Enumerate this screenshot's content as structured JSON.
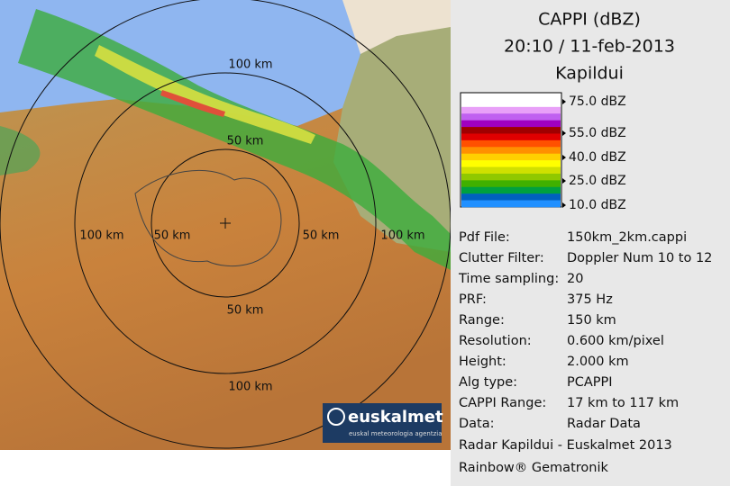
{
  "header": {
    "title": "CAPPI (dBZ)",
    "datetime": "20:10 / 11-feb-2013",
    "site": "Kapildui"
  },
  "legend": {
    "labels": [
      "75.0 dBZ",
      "55.0 dBZ",
      "40.0 dBZ",
      "25.0 dBZ",
      "10.0 dBZ"
    ]
  },
  "info": {
    "rows": [
      [
        "Pdf File:",
        "150km_2km.cappi"
      ],
      [
        "Clutter Filter:",
        "Doppler Num 10 to 12"
      ],
      [
        "Time sampling:",
        "20"
      ],
      [
        "PRF:",
        "375 Hz"
      ],
      [
        "Range:",
        "150 km"
      ],
      [
        "Resolution:",
        "0.600 km/pixel"
      ],
      [
        "Height:",
        "2.000 km"
      ],
      [
        "Alg type:",
        "PCAPPI"
      ],
      [
        "CAPPI Range:",
        "17 km to 117 km"
      ],
      [
        "Data:",
        "Radar Data"
      ]
    ]
  },
  "footer": [
    "Radar Kapildui - Euskalmet 2013",
    "Rainbow® Gematronik"
  ],
  "map": {
    "range_labels": [
      "100 km",
      "50 km",
      "100 km",
      "50 km",
      "50 km",
      "100 km",
      "50 km",
      "100 km"
    ]
  },
  "logo": {
    "name": "euskalmet",
    "tagline": "euskal meteorologia agentzia"
  }
}
